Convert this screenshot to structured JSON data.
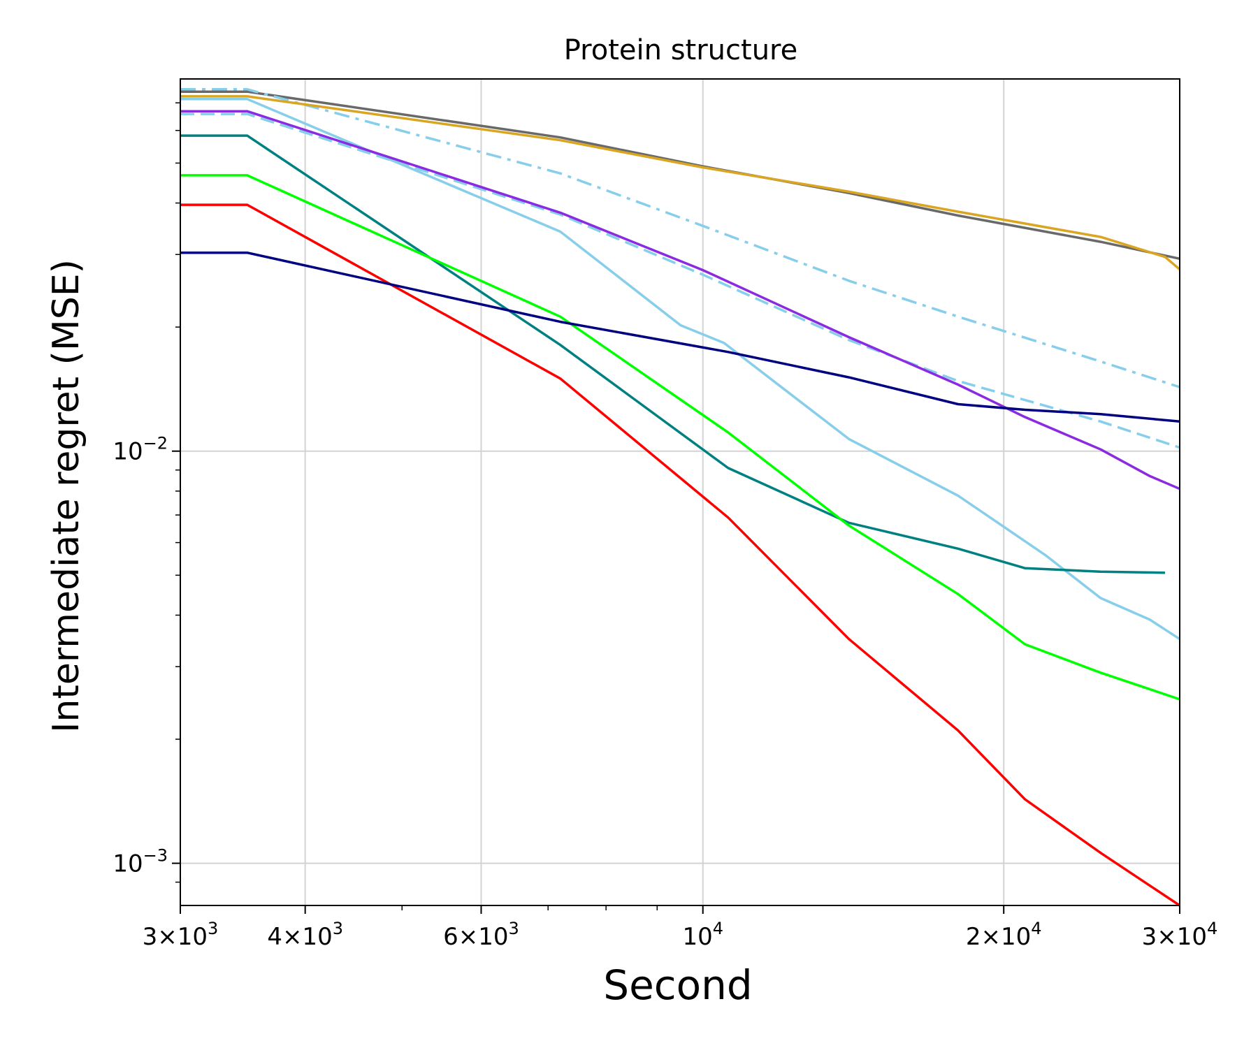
{
  "chart_data": {
    "type": "line",
    "title": "Protein structure",
    "xlabel": "Second",
    "ylabel": "Intermediate regret (MSE)",
    "xscale": "log",
    "yscale": "log",
    "xlim": [
      3000,
      30000
    ],
    "ylim": [
      0.00079,
      0.08
    ],
    "grid": true,
    "x_major_ticks": [
      {
        "value": 3000,
        "mantissa": "3",
        "exp": "3"
      },
      {
        "value": 4000,
        "mantissa": "4",
        "exp": "3"
      },
      {
        "value": 6000,
        "mantissa": "6",
        "exp": "3"
      },
      {
        "value": 10000,
        "mantissa": "",
        "exp": "4"
      },
      {
        "value": 20000,
        "mantissa": "2",
        "exp": "4"
      },
      {
        "value": 30000,
        "mantissa": "3",
        "exp": "4"
      }
    ],
    "x_minor_ticks": [
      5000,
      7000,
      8000,
      9000
    ],
    "y_major_ticks": [
      {
        "value": 0.001,
        "exp": "−3"
      },
      {
        "value": 0.01,
        "exp": "−2"
      }
    ],
    "y_minor_ticks": [
      0.0009,
      0.002,
      0.003,
      0.004,
      0.005,
      0.006,
      0.007,
      0.008,
      0.009,
      0.02,
      0.03,
      0.04,
      0.05,
      0.06,
      0.07
    ],
    "series": [
      {
        "name": "gray",
        "color": "#696969",
        "dash": "solid",
        "x": [
          3000,
          3500,
          7200,
          10000,
          14000,
          18000,
          25000,
          30000
        ],
        "y": [
          0.0745,
          0.0745,
          0.0577,
          0.0491,
          0.0423,
          0.0373,
          0.0322,
          0.0293
        ]
      },
      {
        "name": "skyblue-dashdot",
        "color": "#87CEEB",
        "dash": "dashdot",
        "x": [
          3000,
          3500,
          7200,
          10000,
          14000,
          18000,
          25000,
          30000
        ],
        "y": [
          0.0755,
          0.0755,
          0.0472,
          0.0352,
          0.0259,
          0.0212,
          0.0165,
          0.0143
        ]
      },
      {
        "name": "skyblue-dashed",
        "color": "#87CEEB",
        "dash": "dashed",
        "x": [
          3000,
          3500,
          7200,
          10000,
          14000,
          18000,
          25000,
          30000
        ],
        "y": [
          0.0658,
          0.0658,
          0.0375,
          0.0268,
          0.0186,
          0.0148,
          0.0118,
          0.0102
        ]
      },
      {
        "name": "skyblue",
        "color": "#87CEEB",
        "dash": "solid",
        "x": [
          3000,
          3500,
          7200,
          9500,
          10500,
          14000,
          18000,
          22000,
          25000,
          28000,
          30000
        ],
        "y": [
          0.0715,
          0.0715,
          0.0341,
          0.0202,
          0.0183,
          0.0107,
          0.0078,
          0.0056,
          0.0044,
          0.0039,
          0.0035
        ]
      },
      {
        "name": "goldenrod",
        "color": "#DAA520",
        "dash": "solid",
        "x": [
          3000,
          3500,
          7200,
          10000,
          14000,
          18000,
          25000,
          29000,
          30000
        ],
        "y": [
          0.0726,
          0.0726,
          0.0568,
          0.0488,
          0.0426,
          0.0381,
          0.0331,
          0.0296,
          0.0276
        ]
      },
      {
        "name": "blueviolet",
        "color": "#8A2BE2",
        "dash": "solid",
        "x": [
          3000,
          3500,
          7200,
          10000,
          14000,
          18000,
          21000,
          25000,
          28000,
          30000
        ],
        "y": [
          0.0668,
          0.0668,
          0.0379,
          0.0275,
          0.0189,
          0.0145,
          0.0121,
          0.0101,
          0.0087,
          0.0081
        ]
      },
      {
        "name": "teal",
        "color": "#008080",
        "dash": "solid",
        "x": [
          3000,
          3500,
          7200,
          10600,
          14000,
          18000,
          21000,
          25000,
          29000
        ],
        "y": [
          0.0583,
          0.0583,
          0.0181,
          0.0091,
          0.0067,
          0.0058,
          0.0052,
          0.0051,
          0.00507
        ]
      },
      {
        "name": "lime",
        "color": "#00FF00",
        "dash": "solid",
        "x": [
          3000,
          3500,
          7200,
          10600,
          14000,
          18000,
          21000,
          25000,
          30000
        ],
        "y": [
          0.0467,
          0.0467,
          0.0212,
          0.0111,
          0.0066,
          0.0045,
          0.0034,
          0.0029,
          0.0025
        ]
      },
      {
        "name": "red",
        "color": "#FF0000",
        "dash": "solid",
        "x": [
          3000,
          3500,
          7200,
          10600,
          14000,
          18000,
          21000,
          25000,
          30000
        ],
        "y": [
          0.0396,
          0.0396,
          0.015,
          0.0069,
          0.0035,
          0.0021,
          0.00143,
          0.00106,
          0.00079
        ]
      },
      {
        "name": "navy",
        "color": "#000080",
        "dash": "solid",
        "x": [
          3000,
          3500,
          7200,
          10600,
          14000,
          18000,
          21000,
          25000,
          30000
        ],
        "y": [
          0.0303,
          0.0303,
          0.0206,
          0.0174,
          0.0151,
          0.013,
          0.0126,
          0.0123,
          0.0118
        ]
      }
    ]
  }
}
